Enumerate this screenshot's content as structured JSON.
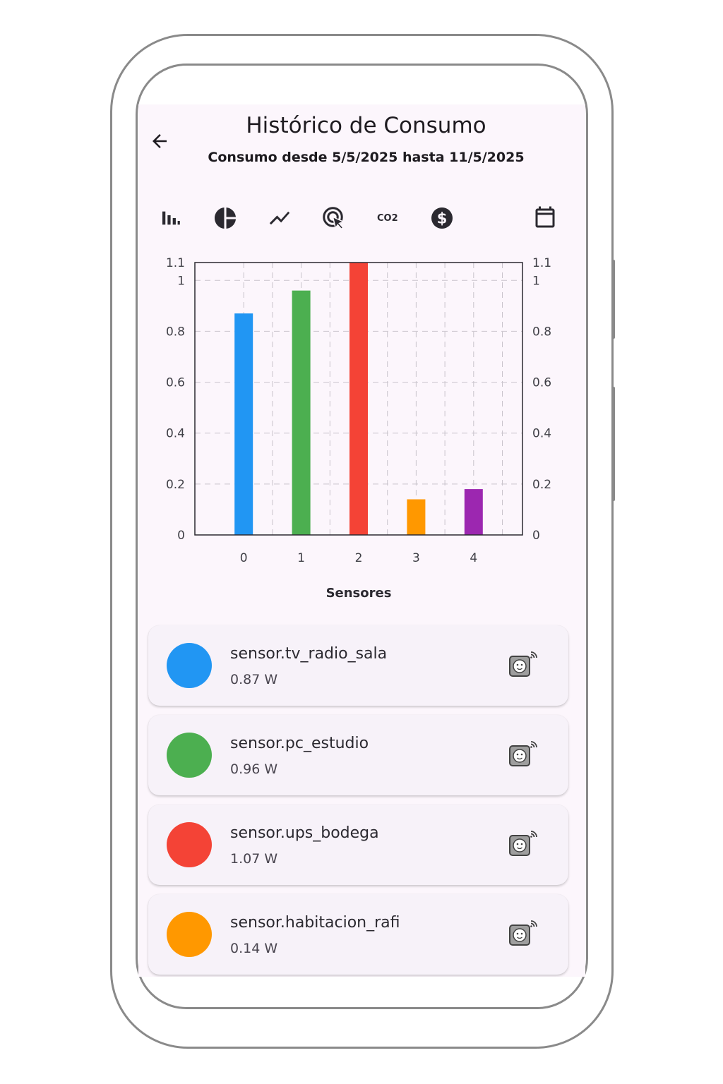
{
  "header": {
    "title": "Histórico de Consumo",
    "subtitle": "Consumo desde 5/5/2025 hasta 11/5/2025"
  },
  "toolbar": {
    "icons": [
      "bar-chart-icon",
      "pie-chart-icon",
      "line-chart-icon",
      "touch-select-icon",
      "co2-icon",
      "dollar-icon",
      "calendar-icon"
    ],
    "co2_label": "CO2"
  },
  "chart_data": {
    "type": "bar",
    "categories": [
      "0",
      "1",
      "2",
      "3",
      "4"
    ],
    "values": [
      0.87,
      0.96,
      1.07,
      0.14,
      0.18
    ],
    "colors": [
      "#2196f3",
      "#4caf50",
      "#f44336",
      "#ff9800",
      "#9c27b0"
    ],
    "xlabel": "Sensores",
    "ylabel": "",
    "ylim": [
      0,
      1.07
    ],
    "yticks": [
      0,
      0.2,
      0.4,
      0.6,
      0.8,
      1
    ],
    "ytick_max_label": "1.1",
    "grid": true
  },
  "sensors": [
    {
      "name": "sensor.tv_radio_sala",
      "value": "0.87 W",
      "color": "#2196f3"
    },
    {
      "name": "sensor.pc_estudio",
      "value": "0.96 W",
      "color": "#4caf50"
    },
    {
      "name": "sensor.ups_bodega",
      "value": "1.07 W",
      "color": "#f44336"
    },
    {
      "name": "sensor.habitacion_rafi",
      "value": "0.14 W",
      "color": "#ff9800"
    }
  ]
}
